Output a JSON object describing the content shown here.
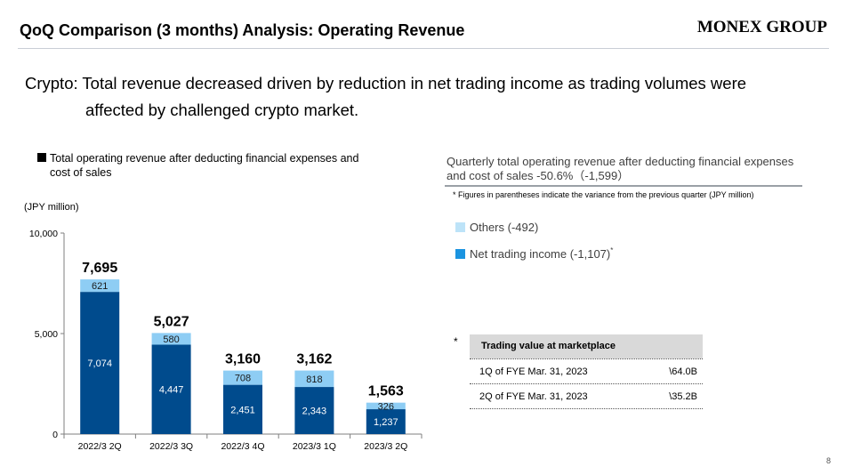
{
  "header": {
    "title": "QoQ Comparison (3 months) Analysis: Operating Revenue",
    "logo": "MONEX GROUP"
  },
  "headline": {
    "line1": "Crypto: Total revenue decreased driven by reduction in net trading income as trading volumes were",
    "line2": "affected by challenged crypto market."
  },
  "chart_legend": "Total operating revenue after deducting financial expenses and cost of sales",
  "right_panel": {
    "title": "Quarterly total operating revenue after deducting financial expenses and cost of sales -50.6%（-1,599）",
    "note": "* Figures in parentheses indicate the variance from the previous quarter (JPY million)",
    "legend_others": "Others (-492)",
    "legend_net": "Net trading income (-1,107)",
    "legend_net_mark": "*"
  },
  "trading_table": {
    "asterisk": "*",
    "header": "Trading value at marketplace",
    "rows": [
      {
        "label": "1Q of FYE Mar. 31, 2023",
        "value": "\\64.0B"
      },
      {
        "label": "2Q of FYE Mar. 31, 2023",
        "value": "\\35.2B"
      }
    ]
  },
  "page_number": "8",
  "colors": {
    "net_trading": "#004b8d",
    "others": "#8ecdf4",
    "legend_others": "#bde3f8",
    "legend_net": "#1b94e0"
  },
  "chart_data": {
    "type": "bar",
    "stacked": true,
    "title": "",
    "xlabel": "",
    "ylabel": "(JPY million)",
    "ylim": [
      0,
      10000
    ],
    "yticks": [
      0,
      5000,
      10000
    ],
    "ytick_labels": [
      "0",
      "5,000",
      "10,000"
    ],
    "categories": [
      "2022/3 2Q",
      "2022/3 3Q",
      "2022/3 4Q",
      "2023/3 1Q",
      "2023/3 2Q"
    ],
    "series": [
      {
        "name": "Net trading income",
        "values": [
          7074,
          4447,
          2451,
          2343,
          1237
        ],
        "labels": [
          "7,074",
          "4,447",
          "2,451",
          "2,343",
          "1,237"
        ]
      },
      {
        "name": "Others",
        "values": [
          621,
          580,
          708,
          818,
          326
        ],
        "labels": [
          "621",
          "580",
          "708",
          "818",
          "326"
        ]
      }
    ],
    "totals": [
      7695,
      5027,
      3160,
      3162,
      1563
    ],
    "total_labels": [
      "7,695",
      "5,027",
      "3,160",
      "3,162",
      "1,563"
    ]
  }
}
